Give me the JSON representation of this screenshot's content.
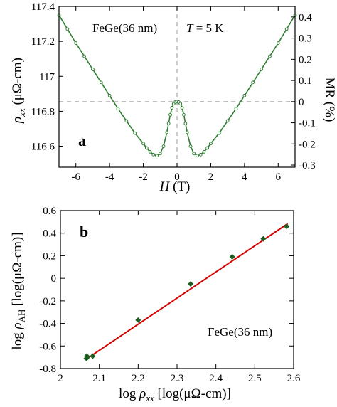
{
  "chart_data": [
    {
      "type": "line",
      "panel_label": "a",
      "annotations": [
        "FeGe(36 nm)",
        "T = 5 K"
      ],
      "xlabel": "H (T)",
      "ylabel_left": "ρ_xx (μΩ-cm)",
      "ylabel_right": "MR (%)",
      "xlim": [
        -7,
        7
      ],
      "ylim_left": [
        116.48,
        117.4
      ],
      "ylim_right": [
        -0.31,
        0.45
      ],
      "x_ticks": [
        -6,
        -4,
        -2,
        0,
        2,
        4,
        6
      ],
      "y_ticks_left": [
        116.6,
        116.8,
        117,
        117.2,
        117.4
      ],
      "y_ticks_right": [
        -0.3,
        -0.2,
        -0.1,
        0,
        0.1,
        0.2,
        0.3,
        0.4
      ],
      "x_tick_labels": [
        "-6",
        "-4",
        "-2",
        "0",
        "2",
        "4",
        "6"
      ],
      "y_tick_labels_left": [
        "116.6",
        "116.8",
        "117",
        "117.2",
        "117.4"
      ],
      "y_tick_labels_right": [
        "-0.3",
        "-0.2",
        "-0.1",
        "0",
        "0.1",
        "0.2",
        "0.3",
        "0.4"
      ],
      "reference_lines": {
        "x": 0,
        "y_left": 116.855
      },
      "series": [
        {
          "color": "#2e7d32",
          "x": [
            -7,
            -6.5,
            -6,
            -5.5,
            -5,
            -4.5,
            -4,
            -3.5,
            -3,
            -2.5,
            -2,
            -1.8,
            -1.6,
            -1.4,
            -1.2,
            -1.0,
            -0.8,
            -0.6,
            -0.5,
            -0.4,
            -0.3,
            -0.2,
            -0.1,
            0,
            0.1,
            0.2,
            0.3,
            0.4,
            0.5,
            0.6,
            0.8,
            1.0,
            1.2,
            1.4,
            1.6,
            1.8,
            2,
            2.5,
            3,
            3.5,
            4,
            4.5,
            5,
            5.5,
            6,
            6.5,
            7
          ],
          "y": [
            117.35,
            117.27,
            117.19,
            117.115,
            117.04,
            116.965,
            116.89,
            116.815,
            116.745,
            116.675,
            116.615,
            116.59,
            116.568,
            116.552,
            116.546,
            116.558,
            116.6,
            116.68,
            116.73,
            116.78,
            116.82,
            116.843,
            116.853,
            116.855,
            116.853,
            116.843,
            116.82,
            116.78,
            116.73,
            116.68,
            116.6,
            116.558,
            116.546,
            116.552,
            116.568,
            116.59,
            116.615,
            116.675,
            116.745,
            116.815,
            116.89,
            116.965,
            117.04,
            117.115,
            117.19,
            117.27,
            117.35
          ]
        }
      ]
    },
    {
      "type": "scatter",
      "panel_label": "b",
      "annotations": [
        "FeGe(36 nm)"
      ],
      "xlabel": "log ρ_xx [log(μΩ-cm)]",
      "ylabel": "log ρ_AH [log(μΩ-cm)]",
      "xlim": [
        2.0,
        2.6
      ],
      "ylim": [
        -0.8,
        0.6
      ],
      "x_ticks": [
        2.0,
        2.1,
        2.2,
        2.3,
        2.4,
        2.5,
        2.6
      ],
      "y_ticks": [
        -0.8,
        -0.6,
        -0.4,
        -0.2,
        0,
        0.2,
        0.4,
        0.6
      ],
      "x_tick_labels": [
        "2",
        "2.1",
        "2.2",
        "2.3",
        "2.4",
        "2.5",
        "2.6"
      ],
      "y_tick_labels": [
        "-0.8",
        "-0.6",
        "-0.4",
        "-0.2",
        "0",
        "0.2",
        "0.4",
        "0.6"
      ],
      "points": {
        "color": "#1b5e20",
        "x": [
          2.067,
          2.068,
          2.069,
          2.083,
          2.2,
          2.335,
          2.442,
          2.522,
          2.582
        ],
        "y": [
          -0.71,
          -0.69,
          -0.7,
          -0.69,
          -0.37,
          -0.05,
          0.19,
          0.35,
          0.46
        ]
      },
      "fit_line": {
        "color": "#d50000",
        "x": [
          2.065,
          2.585
        ],
        "y": [
          -0.72,
          0.485
        ]
      }
    }
  ]
}
